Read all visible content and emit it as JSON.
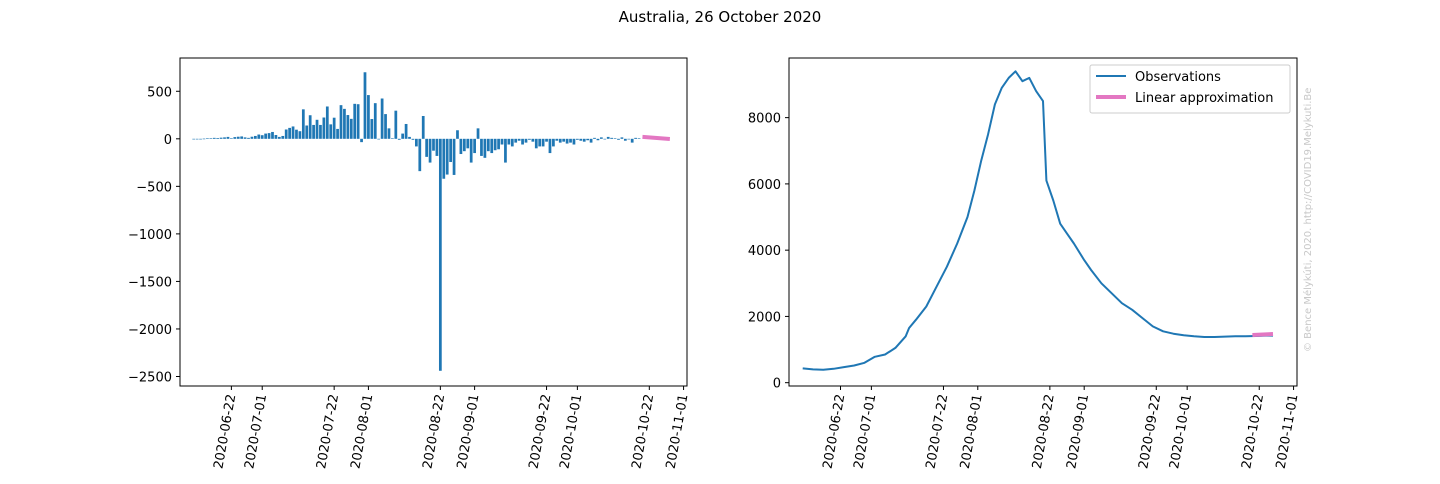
{
  "figure": {
    "title": "Australia, 26 October 2020",
    "credit": "© Bence Mélykúti, 2020. http://COVID19.Melykuti.Be"
  },
  "colors": {
    "observations": "#1f77b4",
    "approximation": "#e377c2"
  },
  "chart_data": [
    {
      "type": "bar",
      "title": "",
      "x_axis": {
        "type": "date",
        "range": [
          "2020-06-07",
          "2020-11-02"
        ],
        "tick_labels": [
          "2020-06-22",
          "2020-07-01",
          "2020-07-22",
          "2020-08-01",
          "2020-08-22",
          "2020-09-01",
          "2020-09-22",
          "2020-10-01",
          "2020-10-22",
          "2020-11-01"
        ]
      },
      "y_axis": {
        "range": [
          -2600,
          850
        ],
        "tick_values": [
          500,
          0,
          -500,
          -1000,
          -1500,
          -2000,
          -2500
        ],
        "tick_labels": [
          "500",
          "0",
          "−500",
          "−1000",
          "−1500",
          "−2000",
          "−2500"
        ]
      },
      "start_date": "2020-06-11",
      "values": [
        -5,
        -3,
        -4,
        2,
        5,
        6,
        10,
        8,
        12,
        15,
        20,
        5,
        18,
        22,
        25,
        15,
        10,
        22,
        30,
        45,
        38,
        55,
        60,
        72,
        40,
        20,
        30,
        98,
        115,
        130,
        96,
        80,
        310,
        140,
        248,
        146,
        200,
        146,
        224,
        340,
        152,
        222,
        104,
        354,
        315,
        250,
        210,
        368,
        364,
        -35,
        700,
        460,
        208,
        375,
        -5,
        424,
        260,
        110,
        6,
        296,
        -10,
        55,
        156,
        20,
        -10,
        -80,
        -340,
        240,
        -190,
        -250,
        -125,
        -180,
        -2440,
        -420,
        -376,
        -244,
        -380,
        90,
        -160,
        -130,
        -100,
        -250,
        -150,
        110,
        -180,
        -200,
        -130,
        -150,
        -120,
        -110,
        -60,
        -250,
        -60,
        -80,
        -40,
        -20,
        -60,
        -40,
        -10,
        -30,
        -100,
        -80,
        -80,
        -30,
        -150,
        -80,
        -20,
        -40,
        -30,
        -50,
        -40,
        -60,
        -10,
        -20,
        -30,
        -15,
        -40,
        10,
        -15,
        15,
        -5,
        20,
        10,
        5,
        -10,
        15,
        -20,
        -5,
        -40,
        10,
        5
      ],
      "approximation": {
        "start": "2020-10-20",
        "end": "2020-10-28",
        "values": [
          20,
          -2
        ]
      }
    },
    {
      "type": "line",
      "title": "",
      "x_axis": {
        "type": "date",
        "range": [
          "2020-06-07",
          "2020-11-02"
        ],
        "tick_labels": [
          "2020-06-22",
          "2020-07-01",
          "2020-07-22",
          "2020-08-01",
          "2020-08-22",
          "2020-09-01",
          "2020-09-22",
          "2020-10-01",
          "2020-10-22",
          "2020-11-01"
        ]
      },
      "y_axis": {
        "range": [
          -100,
          9800
        ],
        "tick_values": [
          0,
          2000,
          4000,
          6000,
          8000
        ],
        "tick_labels": [
          "0",
          "2000",
          "4000",
          "6000",
          "8000"
        ]
      },
      "legend": {
        "placement": "top-right",
        "entries": [
          "Observations",
          "Linear approximation"
        ]
      },
      "series": [
        {
          "name": "Observations",
          "points": [
            [
              "2020-06-11",
              430
            ],
            [
              "2020-06-14",
              400
            ],
            [
              "2020-06-17",
              390
            ],
            [
              "2020-06-20",
              420
            ],
            [
              "2020-06-23",
              470
            ],
            [
              "2020-06-26",
              520
            ],
            [
              "2020-06-29",
              600
            ],
            [
              "2020-07-02",
              780
            ],
            [
              "2020-07-05",
              850
            ],
            [
              "2020-07-08",
              1050
            ],
            [
              "2020-07-11",
              1400
            ],
            [
              "2020-07-12",
              1650
            ],
            [
              "2020-07-14",
              1900
            ],
            [
              "2020-07-17",
              2300
            ],
            [
              "2020-07-20",
              2900
            ],
            [
              "2020-07-23",
              3500
            ],
            [
              "2020-07-26",
              4200
            ],
            [
              "2020-07-29",
              5000
            ],
            [
              "2020-07-31",
              5800
            ],
            [
              "2020-08-02",
              6700
            ],
            [
              "2020-08-04",
              7500
            ],
            [
              "2020-08-06",
              8400
            ],
            [
              "2020-08-08",
              8900
            ],
            [
              "2020-08-10",
              9200
            ],
            [
              "2020-08-12",
              9400
            ],
            [
              "2020-08-14",
              9100
            ],
            [
              "2020-08-16",
              9200
            ],
            [
              "2020-08-18",
              8800
            ],
            [
              "2020-08-20",
              8500
            ],
            [
              "2020-08-21",
              6100
            ],
            [
              "2020-08-23",
              5500
            ],
            [
              "2020-08-25",
              4800
            ],
            [
              "2020-08-27",
              4500
            ],
            [
              "2020-08-29",
              4200
            ],
            [
              "2020-09-01",
              3700
            ],
            [
              "2020-09-03",
              3400
            ],
            [
              "2020-09-06",
              3000
            ],
            [
              "2020-09-09",
              2700
            ],
            [
              "2020-09-12",
              2400
            ],
            [
              "2020-09-15",
              2200
            ],
            [
              "2020-09-18",
              1950
            ],
            [
              "2020-09-21",
              1700
            ],
            [
              "2020-09-24",
              1550
            ],
            [
              "2020-09-27",
              1480
            ],
            [
              "2020-09-30",
              1430
            ],
            [
              "2020-10-03",
              1400
            ],
            [
              "2020-10-06",
              1380
            ],
            [
              "2020-10-09",
              1380
            ],
            [
              "2020-10-12",
              1390
            ],
            [
              "2020-10-15",
              1400
            ],
            [
              "2020-10-18",
              1400
            ],
            [
              "2020-10-21",
              1410
            ],
            [
              "2020-10-24",
              1420
            ],
            [
              "2020-10-26",
              1420
            ]
          ]
        },
        {
          "name": "Linear approximation",
          "points": [
            [
              "2020-10-20",
              1440
            ],
            [
              "2020-10-26",
              1470
            ]
          ]
        }
      ]
    }
  ]
}
